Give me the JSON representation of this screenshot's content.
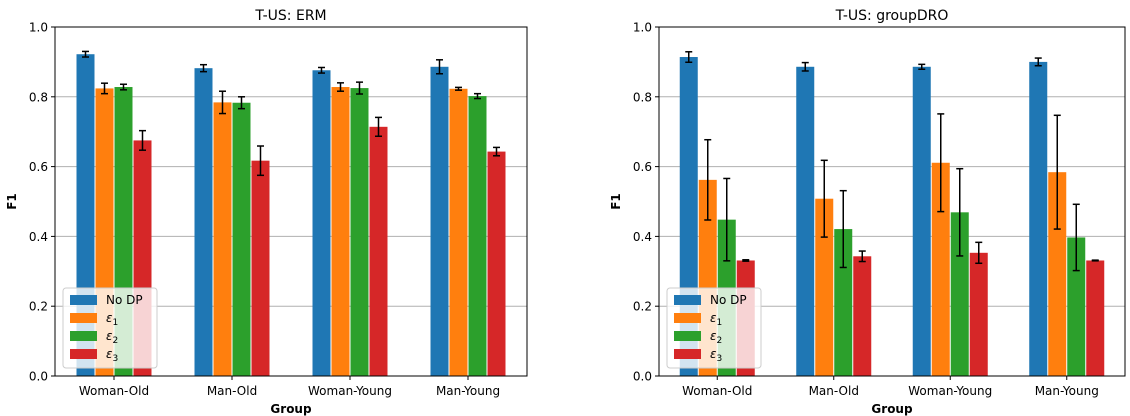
{
  "chart_data": [
    {
      "type": "bar",
      "title": "T-US: ERM",
      "xlabel": "Group",
      "ylabel": "F1",
      "ylim": [
        0.0,
        1.0
      ],
      "yticks": [
        "0.0",
        "0.2",
        "0.4",
        "0.6",
        "0.8",
        "1.0"
      ],
      "grid": "horizontal",
      "legend_placement": "lower-left",
      "categories": [
        "Woman-Old",
        "Man-Old",
        "Woman-Young",
        "Man-Young"
      ],
      "series": [
        {
          "name": "No DP",
          "color": "#1f77b4",
          "values": [
            0.922,
            0.882,
            0.876,
            0.886
          ],
          "err": [
            0.008,
            0.01,
            0.008,
            0.02
          ]
        },
        {
          "name": "ε1",
          "color": "#ff7f0e",
          "values": [
            0.824,
            0.784,
            0.828,
            0.823
          ],
          "err": [
            0.015,
            0.032,
            0.012,
            0.004
          ]
        },
        {
          "name": "ε2",
          "color": "#2ca02c",
          "values": [
            0.828,
            0.783,
            0.825,
            0.802
          ],
          "err": [
            0.008,
            0.017,
            0.017,
            0.007
          ]
        },
        {
          "name": "ε3",
          "color": "#d62728",
          "values": [
            0.675,
            0.617,
            0.714,
            0.643
          ],
          "err": [
            0.028,
            0.042,
            0.027,
            0.012
          ]
        }
      ]
    },
    {
      "type": "bar",
      "title": "T-US: groupDRO",
      "xlabel": "Group",
      "ylabel": "F1",
      "ylim": [
        0.0,
        1.0
      ],
      "yticks": [
        "0.0",
        "0.2",
        "0.4",
        "0.6",
        "0.8",
        "1.0"
      ],
      "grid": "horizontal",
      "legend_placement": "lower-left",
      "categories": [
        "Woman-Old",
        "Man-Old",
        "Woman-Young",
        "Man-Young"
      ],
      "series": [
        {
          "name": "No DP",
          "color": "#1f77b4",
          "values": [
            0.914,
            0.886,
            0.886,
            0.9
          ],
          "err": [
            0.015,
            0.012,
            0.007,
            0.011
          ]
        },
        {
          "name": "ε1",
          "color": "#ff7f0e",
          "values": [
            0.562,
            0.508,
            0.611,
            0.584
          ],
          "err": [
            0.115,
            0.11,
            0.14,
            0.163
          ]
        },
        {
          "name": "ε2",
          "color": "#2ca02c",
          "values": [
            0.448,
            0.421,
            0.469,
            0.397
          ],
          "err": [
            0.118,
            0.11,
            0.125,
            0.095
          ]
        },
        {
          "name": "ε3",
          "color": "#d62728",
          "values": [
            0.331,
            0.343,
            0.353,
            0.331
          ],
          "err": [
            0.002,
            0.015,
            0.03,
            0.001
          ]
        }
      ]
    }
  ]
}
